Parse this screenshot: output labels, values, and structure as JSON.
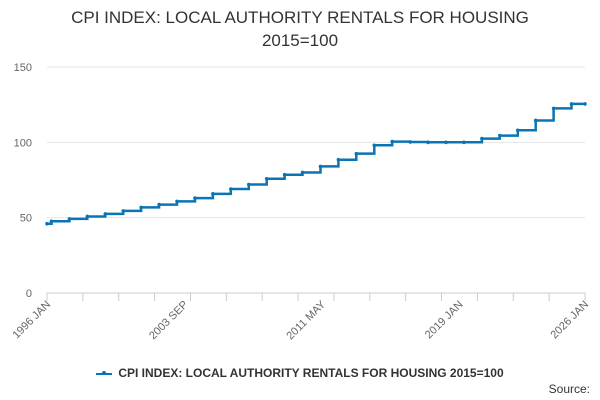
{
  "chart_data": {
    "type": "line",
    "title_line1": "CPI INDEX: LOCAL AUTHORITY RENTALS FOR HOUSING",
    "title_line2": "2015=100",
    "xlabel": "",
    "ylabel": "",
    "ylim": [
      0,
      150
    ],
    "yticks": [
      0,
      50,
      100,
      150
    ],
    "xlim": [
      "1996-01",
      "2026-01"
    ],
    "xticks": [
      "1996 JAN",
      "2003 SEP",
      "2011 MAY",
      "2019 JAN",
      "2026 JAN"
    ],
    "grid": "horizontal",
    "legend_position": "bottom",
    "series": [
      {
        "name": "CPI INDEX: LOCAL AUTHORITY RENTALS FOR HOUSING 2015=100",
        "color": "#0b75b3",
        "points": [
          [
            "1996-01",
            46
          ],
          [
            "1996-04",
            47.6
          ],
          [
            "1997-04",
            49.2
          ],
          [
            "1998-04",
            50.8
          ],
          [
            "1999-04",
            52.5
          ],
          [
            "2000-04",
            54.5
          ],
          [
            "2001-04",
            56.8
          ],
          [
            "2002-04",
            58.7
          ],
          [
            "2003-04",
            60.8
          ],
          [
            "2004-04",
            63.0
          ],
          [
            "2005-04",
            65.8
          ],
          [
            "2006-04",
            69.0
          ],
          [
            "2007-04",
            72.0
          ],
          [
            "2008-04",
            75.8
          ],
          [
            "2009-04",
            78.5
          ],
          [
            "2010-04",
            80.0
          ],
          [
            "2011-04",
            84.0
          ],
          [
            "2012-04",
            88.5
          ],
          [
            "2013-04",
            92.5
          ],
          [
            "2014-04",
            98.0
          ],
          [
            "2015-04",
            100.5
          ],
          [
            "2016-04",
            100.2
          ],
          [
            "2017-04",
            100.0
          ],
          [
            "2018-04",
            100.0
          ],
          [
            "2019-04",
            100.0
          ],
          [
            "2020-04",
            102.5
          ],
          [
            "2021-04",
            104.5
          ],
          [
            "2022-04",
            108.0
          ],
          [
            "2023-04",
            114.5
          ],
          [
            "2024-04",
            122.5
          ],
          [
            "2025-04",
            125.5
          ],
          [
            "2026-01",
            125.5
          ]
        ]
      }
    ]
  },
  "source_label": "Source:"
}
